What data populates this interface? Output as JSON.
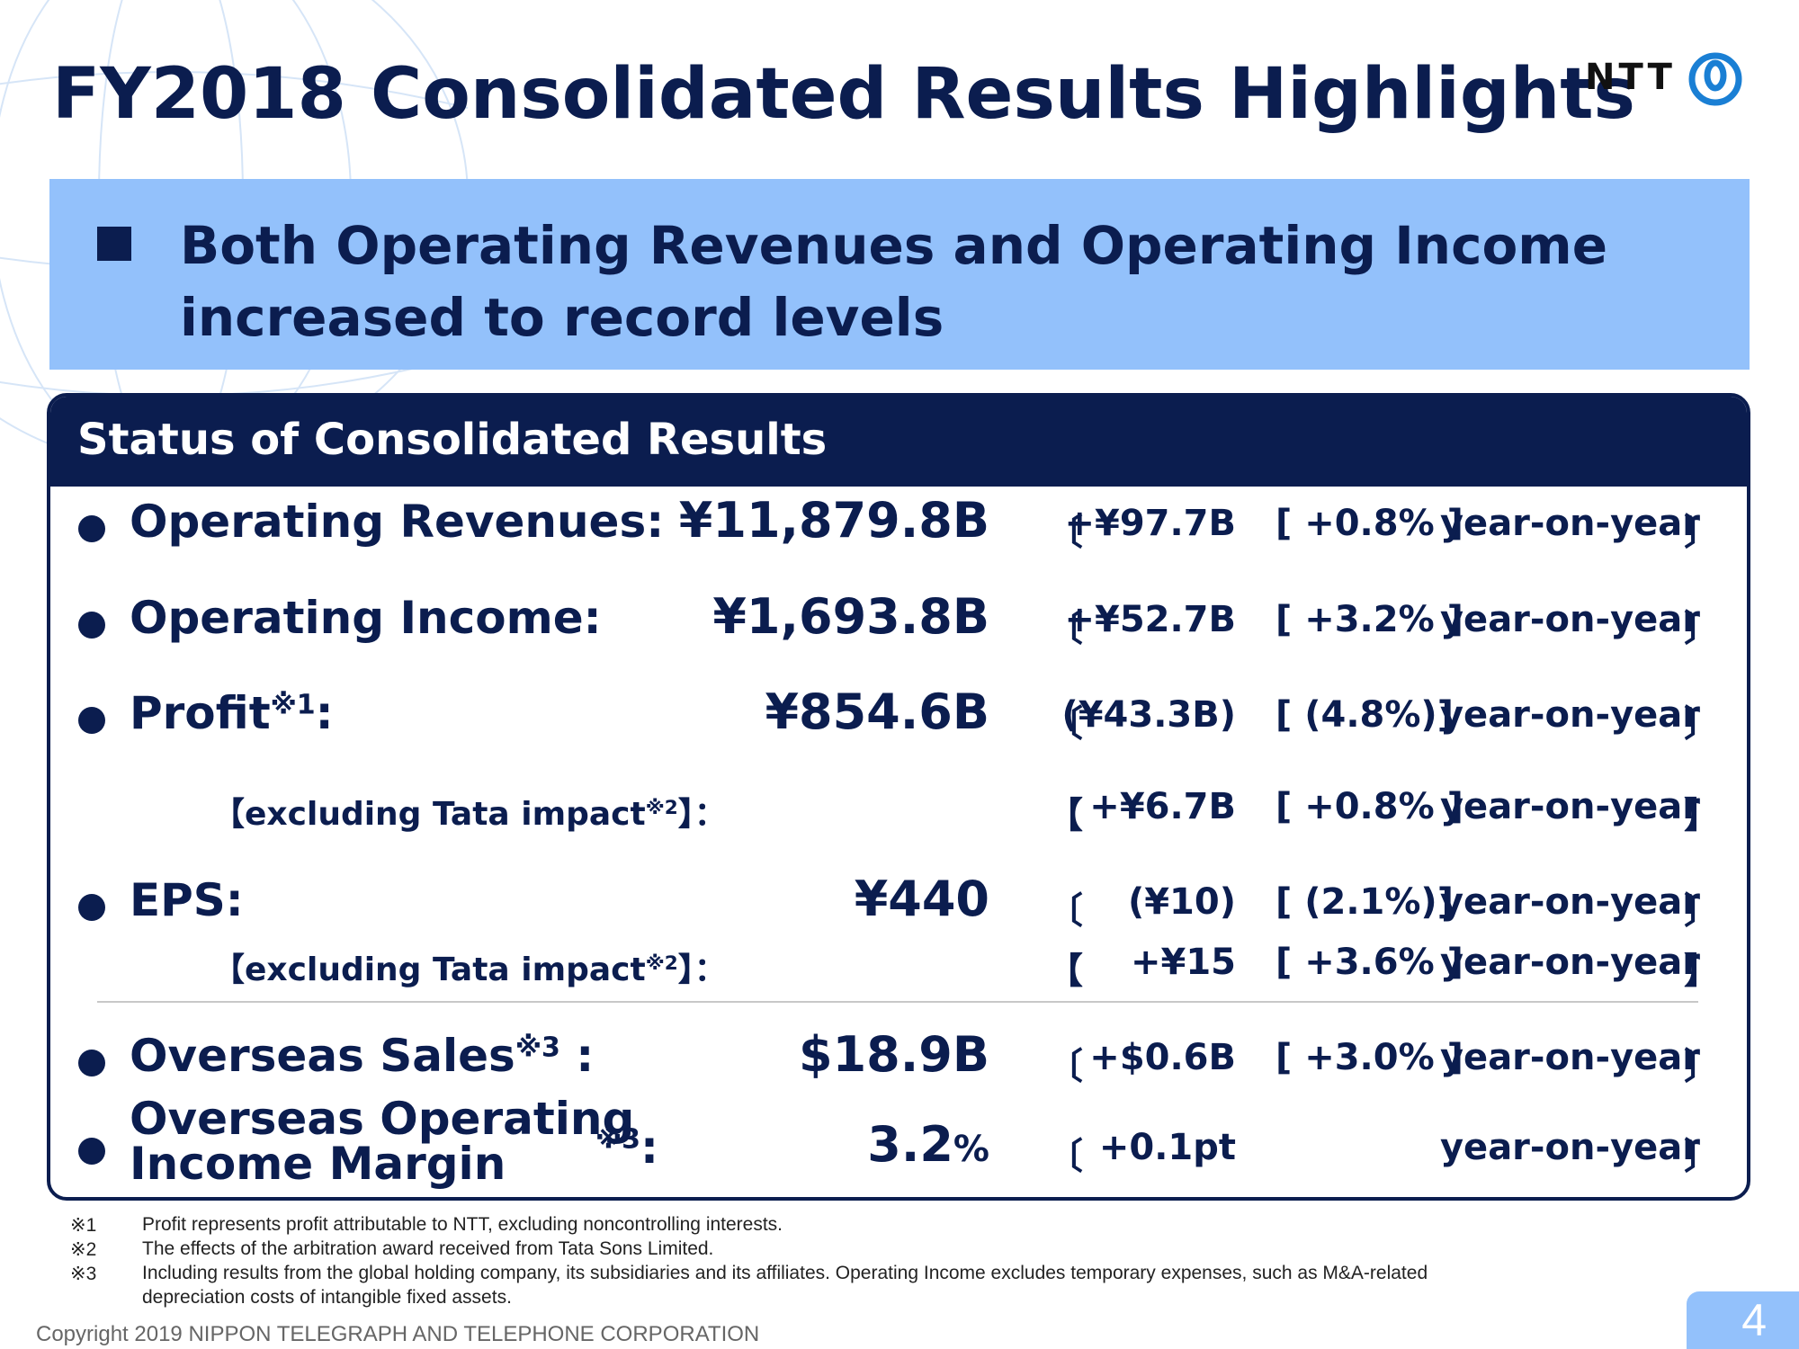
{
  "title": "FY2018 Consolidated Results Highlights",
  "logo": {
    "text": "NTT",
    "icon": "ntt-logo-mark"
  },
  "banner": {
    "text": "Both Operating Revenues and Operating Income increased to record levels"
  },
  "panel": {
    "heading": "Status of Consolidated Results",
    "rows": [
      {
        "label": "Operating Revenues:",
        "value": "¥11,879.8B",
        "open": "〔",
        "change": "+¥97.7B",
        "pct": "[ +0.8% ]",
        "yoy": "year-on-year",
        "close": "〕"
      },
      {
        "label": "Operating Income:",
        "value": "¥1,693.8B",
        "open": "〔",
        "change": "+¥52.7B",
        "pct": "[ +3.2% ]",
        "yoy": "year-on-year",
        "close": "〕"
      },
      {
        "label": "Profit",
        "label_note": "※1",
        "label_suffix": ":",
        "value": "¥854.6B",
        "open": "〔",
        "change": "(¥43.3B)",
        "pct": "[  (4.8%)]",
        "yoy": "year-on-year",
        "close": "〕"
      },
      {
        "label": "【excluding Tata impact",
        "label_note": "※2",
        "label_suffix": "】：",
        "open": "【",
        "change": "+¥6.7B",
        "pct": "[ +0.8% ]",
        "yoy": "year-on-year",
        "close": "】"
      },
      {
        "label": "EPS:",
        "value": "¥440",
        "open": "〔",
        "change": "(¥10)",
        "pct": "[  (2.1%)]",
        "yoy": "year-on-year",
        "close": "〕"
      },
      {
        "label": "【excluding Tata impact",
        "label_note": "※2",
        "label_suffix": "】：",
        "open": "【",
        "change": "+¥15",
        "pct": "[ +3.6% ]",
        "yoy": "year-on-year",
        "close": "】"
      },
      {
        "label": "Overseas Sales",
        "label_note": "※3",
        "label_suffix": " :",
        "value": "$18.9B",
        "open": "〔",
        "change": "+$0.6B",
        "pct": "[ +3.0% ]",
        "yoy": "year-on-year",
        "close": "〕"
      },
      {
        "label_line1": "Overseas Operating",
        "label_line2": "Income Margin",
        "label_note": "※3",
        "label_suffix": ":",
        "value": "3.2",
        "value_unit": "%",
        "open": "〔",
        "change": "+0.1pt",
        "yoy": "year-on-year",
        "close": "〕"
      }
    ]
  },
  "notes": [
    {
      "mark": "※1",
      "text": "Profit represents profit attributable to NTT, excluding noncontrolling interests."
    },
    {
      "mark": "※2",
      "text": "The effects of the arbitration award received from Tata Sons Limited."
    },
    {
      "mark": "※3",
      "text": "Including results from the global holding company, its subsidiaries and its affiliates. Operating Income excludes temporary expenses, such as M&A-related"
    },
    {
      "mark": "",
      "text": "depreciation costs of intangible fixed assets."
    }
  ],
  "copyright": "Copyright 2019 NIPPON TELEGRAPH AND TELEPHONE CORPORATION",
  "page_number": "4"
}
